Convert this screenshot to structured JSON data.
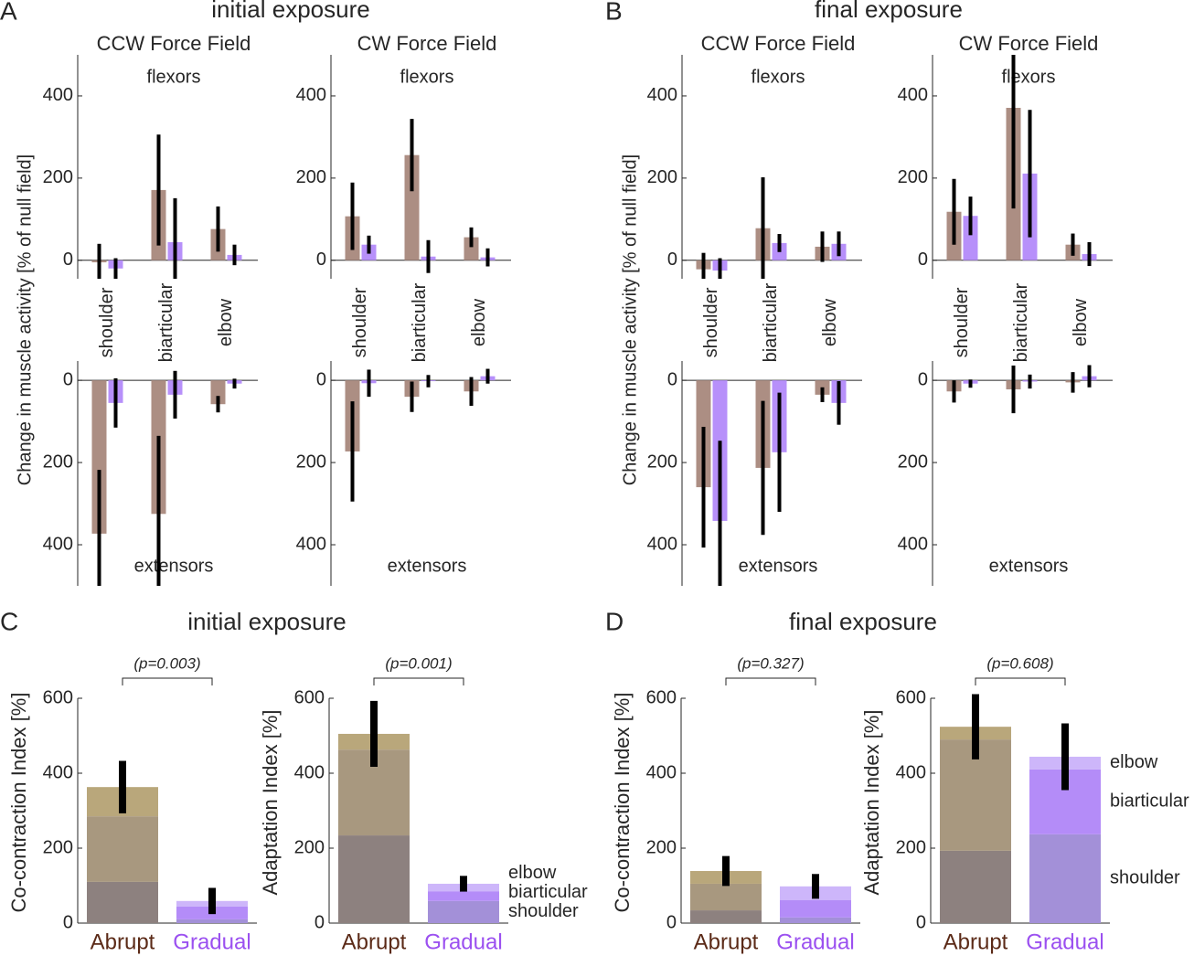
{
  "panels": [
    {
      "letter": "A",
      "title": "initial exposure",
      "ylabel": "Change in muscle activity [% of null field]"
    },
    {
      "letter": "B",
      "title": "final exposure",
      "ylabel": "Change in muscle activity [% of null field]"
    },
    {
      "letter": "C",
      "title": "initial exposure"
    },
    {
      "letter": "D",
      "title": "final exposure"
    }
  ],
  "chart_data": [
    {
      "type": "grouped-bar",
      "title": "CCW Force Field",
      "categories": [
        "shoulder",
        "biarticular",
        "elbow"
      ],
      "subplots": [
        {
          "label": "flexors",
          "ylim": [
            -45,
            500
          ],
          "yticks": [
            0,
            200,
            400
          ],
          "series": [
            {
              "color": "#ac8e83",
              "values": [
                -5,
                171,
                76
              ],
              "errors": [
                45,
                135,
                55
              ]
            },
            {
              "color": "#b790fa",
              "values": [
                -20,
                44,
                13
              ],
              "errors": [
                25,
                107,
                25
              ]
            }
          ]
        },
        {
          "label": "extensors",
          "ylim": [
            -500,
            47
          ],
          "yticks": [
            0,
            {
              "value": -200,
              "label": "200"
            },
            {
              "value": -400,
              "label": "400"
            }
          ],
          "series": [
            {
              "color": "#ac8e83",
              "values": [
                -373,
                -325,
                -58
              ],
              "errors": [
                155,
                190,
                20
              ]
            },
            {
              "color": "#b790fa",
              "values": [
                -55,
                -35,
                -8
              ],
              "errors": [
                60,
                58,
                12
              ]
            }
          ]
        }
      ]
    },
    {
      "type": "grouped-bar",
      "title": "CW Force Field",
      "categories": [
        "shoulder",
        "biarticular",
        "elbow"
      ],
      "subplots": [
        {
          "label": "flexors",
          "ylim": [
            -45,
            500
          ],
          "yticks": [
            0,
            200,
            400
          ],
          "series": [
            {
              "color": "#ac8e83",
              "values": [
                107,
                256,
                56
              ],
              "errors": [
                82,
                88,
                24
              ]
            },
            {
              "color": "#b790fa",
              "values": [
                38,
                9,
                7
              ],
              "errors": [
                22,
                40,
                22
              ]
            }
          ]
        },
        {
          "label": "extensors",
          "ylim": [
            -500,
            47
          ],
          "yticks": [
            0,
            {
              "value": -200,
              "label": "200"
            },
            {
              "value": -400,
              "label": "400"
            }
          ],
          "series": [
            {
              "color": "#ac8e83",
              "values": [
                -173,
                -40,
                -27
              ],
              "errors": [
                122,
                37,
                35
              ]
            },
            {
              "color": "#b790fa",
              "values": [
                -7,
                -2,
                10
              ],
              "errors": [
                33,
                15,
                18
              ]
            }
          ]
        }
      ]
    },
    {
      "type": "grouped-bar",
      "title": "CCW Force Field",
      "categories": [
        "shoulder",
        "biarticular",
        "elbow"
      ],
      "subplots": [
        {
          "label": "flexors",
          "ylim": [
            -45,
            500
          ],
          "yticks": [
            0,
            200,
            400
          ],
          "series": [
            {
              "color": "#ac8e83",
              "values": [
                -22,
                78,
                33
              ],
              "errors": [
                40,
                124,
                37
              ]
            },
            {
              "color": "#b790fa",
              "values": [
                -25,
                42,
                40
              ],
              "errors": [
                30,
                22,
                30
              ]
            }
          ]
        },
        {
          "label": "extensors",
          "ylim": [
            -500,
            47
          ],
          "yticks": [
            0,
            {
              "value": -200,
              "label": "200"
            },
            {
              "value": -400,
              "label": "400"
            }
          ],
          "series": [
            {
              "color": "#ac8e83",
              "values": [
                -260,
                -213,
                -35
              ],
              "errors": [
                147,
                163,
                18
              ]
            },
            {
              "color": "#b790fa",
              "values": [
                -342,
                -175,
                -55
              ],
              "errors": [
                195,
                145,
                53
              ]
            }
          ]
        }
      ]
    },
    {
      "type": "grouped-bar",
      "title": "CW Force Field",
      "categories": [
        "shoulder",
        "biarticular",
        "elbow"
      ],
      "subplots": [
        {
          "label": "flexors",
          "ylim": [
            -45,
            500
          ],
          "yticks": [
            0,
            200,
            400
          ],
          "series": [
            {
              "color": "#ac8e83",
              "values": [
                118,
                371,
                38
              ],
              "errors": [
                80,
                245,
                27
              ]
            },
            {
              "color": "#b790fa",
              "values": [
                108,
                211,
                15
              ],
              "errors": [
                47,
                155,
                29
              ]
            }
          ]
        },
        {
          "label": "extensors",
          "ylim": [
            -500,
            47
          ],
          "yticks": [
            0,
            {
              "value": -200,
              "label": "200"
            },
            {
              "value": -400,
              "label": "400"
            }
          ],
          "series": [
            {
              "color": "#ac8e83",
              "values": [
                -27,
                -22,
                -5
              ],
              "errors": [
                27,
                58,
                25
              ]
            },
            {
              "color": "#b790fa",
              "values": [
                -8,
                -3,
                10
              ],
              "errors": [
                10,
                17,
                27
              ]
            }
          ]
        }
      ]
    },
    {
      "type": "stacked-bar",
      "ylabel": "Co-contraction Index [%]",
      "categories": [
        "Abrupt",
        "Gradual"
      ],
      "category_colors": [
        "#5b2a17",
        "#9b50f0"
      ],
      "ylim": [
        0,
        600
      ],
      "yticks": [
        0,
        200,
        400,
        600
      ],
      "annotation": "(p=0.003)",
      "series": [
        {
          "colors": [
            "#8d817f",
            "#a390d8"
          ],
          "values": [
            110,
            10
          ]
        },
        {
          "colors": [
            "#a8987f",
            "#b48cf8"
          ],
          "values": [
            175,
            34
          ]
        },
        {
          "colors": [
            "#b9a77b",
            "#cdb6fa"
          ],
          "values": [
            78,
            15
          ]
        }
      ],
      "errors": [
        70,
        35
      ],
      "legend": false
    },
    {
      "type": "stacked-bar",
      "ylabel": "Adaptation Index [%]",
      "categories": [
        "Abrupt",
        "Gradual"
      ],
      "category_colors": [
        "#5b2a17",
        "#9b50f0"
      ],
      "ylim": [
        0,
        600
      ],
      "yticks": [
        0,
        200,
        400,
        600
      ],
      "annotation": "(p=0.001)",
      "series": [
        {
          "name": "shoulder",
          "colors": [
            "#8d817f",
            "#a390d8"
          ],
          "values": [
            234,
            59
          ]
        },
        {
          "name": "biarticular",
          "colors": [
            "#a8987f",
            "#b48cf8"
          ],
          "values": [
            229,
            26
          ]
        },
        {
          "name": "elbow",
          "colors": [
            "#b9a77b",
            "#cdb6fa"
          ],
          "values": [
            42,
            20
          ]
        }
      ],
      "errors": [
        88,
        21
      ],
      "legend": true
    },
    {
      "type": "stacked-bar",
      "ylabel": "Co-contraction Index [%]",
      "categories": [
        "Abrupt",
        "Gradual"
      ],
      "category_colors": [
        "#5b2a17",
        "#9b50f0"
      ],
      "ylim": [
        0,
        600
      ],
      "yticks": [
        0,
        200,
        400,
        600
      ],
      "annotation": "(p=0.327)",
      "series": [
        {
          "colors": [
            "#8d817f",
            "#a390d8"
          ],
          "values": [
            34,
            15
          ]
        },
        {
          "colors": [
            "#a8987f",
            "#b48cf8"
          ],
          "values": [
            71,
            46
          ]
        },
        {
          "colors": [
            "#b9a77b",
            "#cdb6fa"
          ],
          "values": [
            34,
            37
          ]
        }
      ],
      "errors": [
        40,
        33
      ],
      "legend": false
    },
    {
      "type": "stacked-bar",
      "ylabel": "Adaptation Index [%]",
      "categories": [
        "Abrupt",
        "Gradual"
      ],
      "category_colors": [
        "#5b2a17",
        "#9b50f0"
      ],
      "ylim": [
        0,
        600
      ],
      "yticks": [
        0,
        200,
        400,
        600
      ],
      "annotation": "(p=0.608)",
      "series": [
        {
          "name": "shoulder",
          "colors": [
            "#8d817f",
            "#a390d8"
          ],
          "values": [
            193,
            237
          ]
        },
        {
          "name": "biarticular",
          "colors": [
            "#a8987f",
            "#b48cf8"
          ],
          "values": [
            297,
            173
          ]
        },
        {
          "name": "elbow",
          "colors": [
            "#b9a77b",
            "#cdb6fa"
          ],
          "values": [
            34,
            34
          ]
        }
      ],
      "errors": [
        87,
        89
      ],
      "legend": true
    }
  ]
}
